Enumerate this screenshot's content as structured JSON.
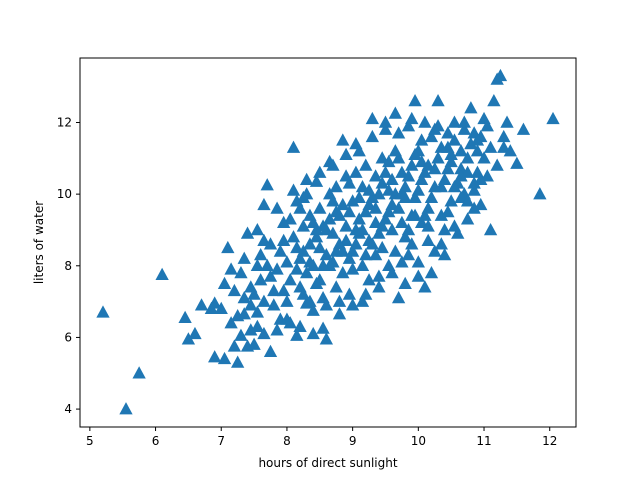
{
  "chart_data": {
    "type": "scatter",
    "xlabel": "hours of direct sunlight",
    "ylabel": "liters of water",
    "xlim": [
      4.85,
      12.4
    ],
    "ylim": [
      3.5,
      13.8
    ],
    "xticks": [
      5,
      6,
      7,
      8,
      9,
      10,
      11,
      12
    ],
    "yticks": [
      4,
      6,
      8,
      10,
      12
    ],
    "marker": "triangle-up",
    "color": "#1f77b4",
    "grid": false,
    "series": [
      {
        "points": [
          [
            5.2,
            6.7
          ],
          [
            5.55,
            4.0
          ],
          [
            5.75,
            5.0
          ],
          [
            6.1,
            7.75
          ],
          [
            6.45,
            6.55
          ],
          [
            6.5,
            5.95
          ],
          [
            6.6,
            6.1
          ],
          [
            6.7,
            6.9
          ],
          [
            6.85,
            6.8
          ],
          [
            6.9,
            6.95
          ],
          [
            7.0,
            6.8
          ],
          [
            7.05,
            7.5
          ],
          [
            7.1,
            8.5
          ],
          [
            7.15,
            6.4
          ],
          [
            7.2,
            7.3
          ],
          [
            6.9,
            5.45
          ],
          [
            7.05,
            5.4
          ],
          [
            7.2,
            5.75
          ],
          [
            7.25,
            5.3
          ],
          [
            7.3,
            6.05
          ],
          [
            7.35,
            6.65
          ],
          [
            7.4,
            5.75
          ],
          [
            7.45,
            7.4
          ],
          [
            7.5,
            5.8
          ],
          [
            7.55,
            6.3
          ],
          [
            7.6,
            8.3
          ],
          [
            7.65,
            9.7
          ],
          [
            7.7,
            10.25
          ],
          [
            7.75,
            5.6
          ],
          [
            7.8,
            6.9
          ],
          [
            7.85,
            9.6
          ],
          [
            7.9,
            6.5
          ],
          [
            7.95,
            8.7
          ],
          [
            8.0,
            8.1
          ],
          [
            8.05,
            9.3
          ],
          [
            8.1,
            11.3
          ],
          [
            8.15,
            6.05
          ],
          [
            8.2,
            7.4
          ],
          [
            8.25,
            9.9
          ],
          [
            8.3,
            6.95
          ],
          [
            8.35,
            8.6
          ],
          [
            8.4,
            6.75
          ],
          [
            8.45,
            10.35
          ],
          [
            8.5,
            7.6
          ],
          [
            8.55,
            6.25
          ],
          [
            8.6,
            5.95
          ],
          [
            8.65,
            10.9
          ],
          [
            8.7,
            8.9
          ],
          [
            8.75,
            9.5
          ],
          [
            8.8,
            6.65
          ],
          [
            8.85,
            11.5
          ],
          [
            8.9,
            10.5
          ],
          [
            8.95,
            7.2
          ],
          [
            9.0,
            8.4
          ],
          [
            9.05,
            11.4
          ],
          [
            9.1,
            9.9
          ],
          [
            9.15,
            7.0
          ],
          [
            9.2,
            10.8
          ],
          [
            9.25,
            8.7
          ],
          [
            9.3,
            11.6
          ],
          [
            9.35,
            9.2
          ],
          [
            9.4,
            7.4
          ],
          [
            9.45,
            10.3
          ],
          [
            9.5,
            11.8
          ],
          [
            9.55,
            8.0
          ],
          [
            9.6,
            9.7
          ],
          [
            9.65,
            12.25
          ],
          [
            9.7,
            7.1
          ],
          [
            9.75,
            10.6
          ],
          [
            9.8,
            8.8
          ],
          [
            9.85,
            11.9
          ],
          [
            9.9,
            9.4
          ],
          [
            9.95,
            12.6
          ],
          [
            10.0,
            8.1
          ],
          [
            10.05,
            10.9
          ],
          [
            10.1,
            7.4
          ],
          [
            10.15,
            9.6
          ],
          [
            10.2,
            11.6
          ],
          [
            10.25,
            8.4
          ],
          [
            10.3,
            12.6
          ],
          [
            10.35,
            10.2
          ],
          [
            10.4,
            9.0
          ],
          [
            10.45,
            11.3
          ],
          [
            10.5,
            9.8
          ],
          [
            10.55,
            12.0
          ],
          [
            10.6,
            8.9
          ],
          [
            10.65,
            10.7
          ],
          [
            10.7,
            11.8
          ],
          [
            10.75,
            9.3
          ],
          [
            10.8,
            12.4
          ],
          [
            10.85,
            10.1
          ],
          [
            10.9,
            11.2
          ],
          [
            10.95,
            9.7
          ],
          [
            11.0,
            12.1
          ],
          [
            11.05,
            10.5
          ],
          [
            11.1,
            9.0
          ],
          [
            11.15,
            12.6
          ],
          [
            11.2,
            13.2
          ],
          [
            11.25,
            13.3
          ],
          [
            11.3,
            11.3
          ],
          [
            11.35,
            12.0
          ],
          [
            11.4,
            11.2
          ],
          [
            11.5,
            10.85
          ],
          [
            11.6,
            11.8
          ],
          [
            11.85,
            10.0
          ],
          [
            12.05,
            12.1
          ],
          [
            7.3,
            7.8
          ],
          [
            7.4,
            8.9
          ],
          [
            7.5,
            7.2
          ],
          [
            7.6,
            7.6
          ],
          [
            7.7,
            8.0
          ],
          [
            7.8,
            7.3
          ],
          [
            7.9,
            8.4
          ],
          [
            8.0,
            7.0
          ],
          [
            8.1,
            8.8
          ],
          [
            8.2,
            8.2
          ],
          [
            8.3,
            7.8
          ],
          [
            8.4,
            9.2
          ],
          [
            8.5,
            8.5
          ],
          [
            8.6,
            9.0
          ],
          [
            8.7,
            8.1
          ],
          [
            8.8,
            9.4
          ],
          [
            8.9,
            8.7
          ],
          [
            9.0,
            9.8
          ],
          [
            9.1,
            8.9
          ],
          [
            9.2,
            9.5
          ],
          [
            9.3,
            8.6
          ],
          [
            9.4,
            10.0
          ],
          [
            9.5,
            9.3
          ],
          [
            9.6,
            10.4
          ],
          [
            9.7,
            9.6
          ],
          [
            9.8,
            10.2
          ],
          [
            9.9,
            10.8
          ],
          [
            10.0,
            10.1
          ],
          [
            10.1,
            10.6
          ],
          [
            10.2,
            9.9
          ],
          [
            10.3,
            11.0
          ],
          [
            10.4,
            10.4
          ],
          [
            10.5,
            10.9
          ],
          [
            10.6,
            10.3
          ],
          [
            10.7,
            10.0
          ],
          [
            10.8,
            11.4
          ],
          [
            10.9,
            10.6
          ],
          [
            11.0,
            11.0
          ],
          [
            8.2,
            9.6
          ],
          [
            8.3,
            10.0
          ],
          [
            8.4,
            8.0
          ],
          [
            8.5,
            9.6
          ],
          [
            8.6,
            8.3
          ],
          [
            8.7,
            9.8
          ],
          [
            8.8,
            8.6
          ],
          [
            8.9,
            9.1
          ],
          [
            9.0,
            7.9
          ],
          [
            9.1,
            9.3
          ],
          [
            9.2,
            8.3
          ],
          [
            9.3,
            9.9
          ],
          [
            9.4,
            8.9
          ],
          [
            9.5,
            10.6
          ],
          [
            9.6,
            9.0
          ],
          [
            9.7,
            11.0
          ],
          [
            9.8,
            9.9
          ],
          [
            9.9,
            8.6
          ],
          [
            10.0,
            11.2
          ],
          [
            10.1,
            9.4
          ],
          [
            7.55,
            9.0
          ],
          [
            7.65,
            7.0
          ],
          [
            7.75,
            8.6
          ],
          [
            7.85,
            7.9
          ],
          [
            7.95,
            9.2
          ],
          [
            8.05,
            7.6
          ],
          [
            8.15,
            8.5
          ],
          [
            8.25,
            7.2
          ],
          [
            8.35,
            9.4
          ],
          [
            8.45,
            8.8
          ],
          [
            8.55,
            7.1
          ],
          [
            8.65,
            8.0
          ],
          [
            8.75,
            7.4
          ],
          [
            8.85,
            9.7
          ],
          [
            8.95,
            8.2
          ],
          [
            9.05,
            9.0
          ],
          [
            9.15,
            10.2
          ],
          [
            9.25,
            9.7
          ],
          [
            9.35,
            10.5
          ],
          [
            9.45,
            9.1
          ],
          [
            9.55,
            10.9
          ],
          [
            9.65,
            8.4
          ],
          [
            9.75,
            9.2
          ],
          [
            9.85,
            10.5
          ],
          [
            9.95,
            9.9
          ],
          [
            10.05,
            9.2
          ],
          [
            10.15,
            10.8
          ],
          [
            10.25,
            10.2
          ],
          [
            10.35,
            11.3
          ],
          [
            10.45,
            9.5
          ],
          [
            10.55,
            10.2
          ],
          [
            10.65,
            11.2
          ],
          [
            10.75,
            10.6
          ],
          [
            10.85,
            9.6
          ],
          [
            10.95,
            10.4
          ],
          [
            7.35,
            8.2
          ],
          [
            7.45,
            6.9
          ],
          [
            7.55,
            6.7
          ],
          [
            7.65,
            6.1
          ],
          [
            7.75,
            7.7
          ],
          [
            7.85,
            6.2
          ],
          [
            7.95,
            7.3
          ],
          [
            8.05,
            6.4
          ],
          [
            8.15,
            7.9
          ],
          [
            8.25,
            8.4
          ],
          [
            8.35,
            7.0
          ],
          [
            8.45,
            7.5
          ],
          [
            8.55,
            9.1
          ],
          [
            8.65,
            9.3
          ],
          [
            8.75,
            8.4
          ],
          [
            8.85,
            7.8
          ],
          [
            8.95,
            9.5
          ],
          [
            9.05,
            8.6
          ],
          [
            9.15,
            8.0
          ],
          [
            9.25,
            10.1
          ],
          [
            9.35,
            9.6
          ],
          [
            9.45,
            8.5
          ],
          [
            9.55,
            9.5
          ],
          [
            9.65,
            10.0
          ],
          [
            9.75,
            8.1
          ],
          [
            9.85,
            9.0
          ],
          [
            9.95,
            11.1
          ],
          [
            10.05,
            10.4
          ],
          [
            10.15,
            9.1
          ],
          [
            10.25,
            11.8
          ],
          [
            10.35,
            9.4
          ],
          [
            10.45,
            10.7
          ],
          [
            10.55,
            11.5
          ],
          [
            10.65,
            9.9
          ],
          [
            10.75,
            11.0
          ],
          [
            10.85,
            10.3
          ],
          [
            7.15,
            7.9
          ],
          [
            7.25,
            6.6
          ],
          [
            7.35,
            7.1
          ],
          [
            7.45,
            6.2
          ],
          [
            7.55,
            8.0
          ],
          [
            7.65,
            8.7
          ],
          [
            8.15,
            9.8
          ],
          [
            8.25,
            9.1
          ],
          [
            8.35,
            8.1
          ],
          [
            8.45,
            9.0
          ],
          [
            8.55,
            8.0
          ],
          [
            8.65,
            10.0
          ],
          [
            8.75,
            10.2
          ],
          [
            8.85,
            8.4
          ],
          [
            8.95,
            10.3
          ],
          [
            9.05,
            10.6
          ],
          [
            9.15,
            9.0
          ],
          [
            9.25,
            7.6
          ],
          [
            9.35,
            8.3
          ],
          [
            9.45,
            11.0
          ],
          [
            9.55,
            10.1
          ],
          [
            9.65,
            11.2
          ],
          [
            9.75,
            10.0
          ],
          [
            9.85,
            8.3
          ],
          [
            9.95,
            9.4
          ],
          [
            10.05,
            11.5
          ],
          [
            10.15,
            8.7
          ],
          [
            10.25,
            10.7
          ],
          [
            10.35,
            8.6
          ],
          [
            10.45,
            11.7
          ],
          [
            10.55,
            9.1
          ],
          [
            10.65,
            10.5
          ],
          [
            10.75,
            9.8
          ],
          [
            10.85,
            11.7
          ],
          [
            10.95,
            11.6
          ],
          [
            11.05,
            11.9
          ],
          [
            8.0,
            6.5
          ],
          [
            8.2,
            6.3
          ],
          [
            8.4,
            6.1
          ],
          [
            8.6,
            6.9
          ],
          [
            8.8,
            7.0
          ],
          [
            9.0,
            6.9
          ],
          [
            9.2,
            7.2
          ],
          [
            9.4,
            7.7
          ],
          [
            9.6,
            7.8
          ],
          [
            9.8,
            7.5
          ],
          [
            10.0,
            7.7
          ],
          [
            10.2,
            7.8
          ],
          [
            10.4,
            8.3
          ],
          [
            8.1,
            10.1
          ],
          [
            8.3,
            10.4
          ],
          [
            8.5,
            10.6
          ],
          [
            8.7,
            10.8
          ],
          [
            8.9,
            11.1
          ],
          [
            9.1,
            11.2
          ],
          [
            9.3,
            12.1
          ],
          [
            9.5,
            12.0
          ],
          [
            9.7,
            11.7
          ],
          [
            9.9,
            12.1
          ],
          [
            10.1,
            12.0
          ],
          [
            10.3,
            11.9
          ],
          [
            10.5,
            11.1
          ],
          [
            10.7,
            12.0
          ],
          [
            10.9,
            11.5
          ],
          [
            11.1,
            11.3
          ],
          [
            11.2,
            10.8
          ],
          [
            11.3,
            11.6
          ]
        ]
      }
    ]
  }
}
